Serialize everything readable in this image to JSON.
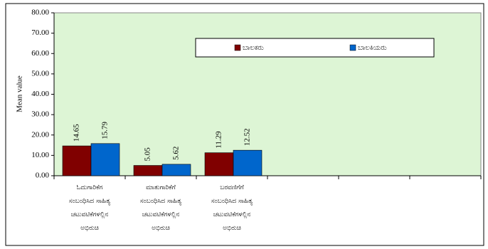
{
  "chart_data": {
    "type": "bar",
    "y_label": "Mean value",
    "categories": [
      "ಓದುಗಾರಿಕೆಗ\nಸಂಬಂಧಿಸಿದ ಸಾಹಿತ್ಯ\nಚಟುವಟಿಕೆಗಳಲ್ಲಿನ\nಅಭಿರುಚಿ",
      "ಮಾತುಗಾರಿಕೆಗೆ\nಸಂಬಂಧಿಸಿದ ಸಾಹಿತ್ಯ\nಚಟುವಟಿಕೆಗಳಲ್ಲಿನ\nಅಭಿರುಚಿ",
      "ಬರವಣಿಗೆಗೆ\nಸಂಬಂಧಿಸಿದ ಸಾಹಿತ್ಯ\nಚಟುವಟಿಕೆಗಳಲ್ಲಿನ\nಅಭಿರುಚಿ",
      null,
      null,
      null
    ],
    "series": [
      {
        "name": "ಬಾಲಕರು",
        "color": "#800000",
        "values": [
          14.65,
          5.05,
          11.29,
          null,
          null,
          null
        ]
      },
      {
        "name": "ಬಾಲಕಿಯರು",
        "color": "#0066cc",
        "values": [
          15.79,
          5.62,
          12.52,
          null,
          null,
          null
        ]
      }
    ],
    "ylim": [
      0,
      80
    ],
    "yticks": [
      {
        "value": 0,
        "label": "0.00"
      },
      {
        "value": 10,
        "label": "10.00"
      },
      {
        "value": 20,
        "label": "20.00"
      },
      {
        "value": 30,
        "label": "30.00"
      },
      {
        "value": 40,
        "label": "40.00"
      },
      {
        "value": 50,
        "label": "50.00"
      },
      {
        "value": 60,
        "label": "60.00"
      },
      {
        "value": 70,
        "label": "70.00"
      },
      {
        "value": 80,
        "label": "80.00"
      }
    ],
    "plot_background": "#ddf5d5"
  }
}
